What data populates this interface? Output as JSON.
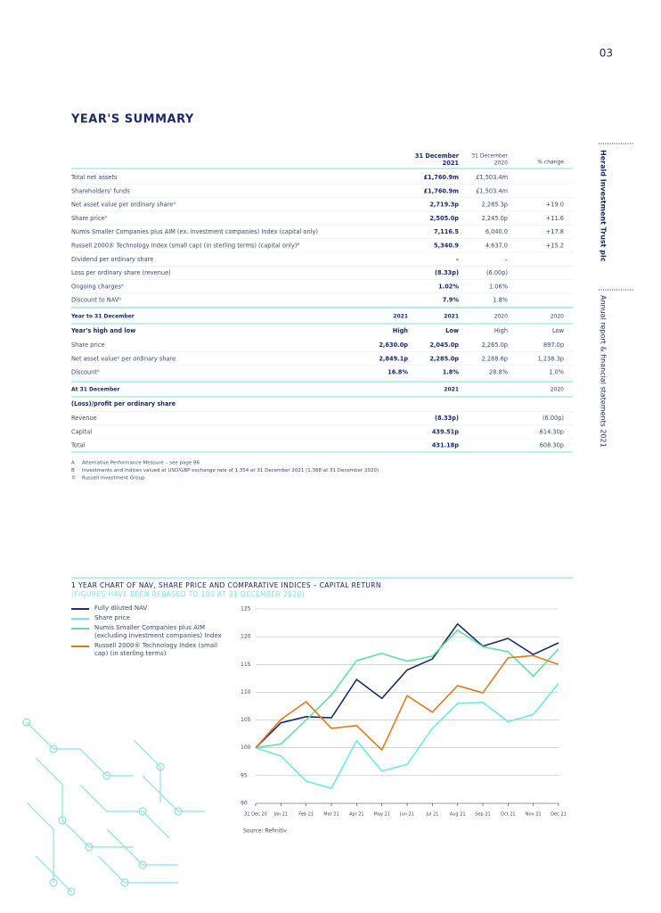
{
  "page_number": "03",
  "title": "YEAR'S SUMMARY",
  "sidebar": [
    "Herald Investment Trust plc",
    "Annual report & financial statements 2021"
  ],
  "summary_table": {
    "header": [
      {
        "line1": "31 December",
        "line2": "2021"
      },
      {
        "line1": "31 December",
        "line2": "2020"
      }
    ],
    "change_header": "% change",
    "rows": [
      [
        "Total net assets",
        "£1,760.9m",
        "£1,503.4m"
      ],
      [
        "Shareholders' funds",
        "£1,760.9m",
        "£1,503.4m"
      ],
      [
        "Net asset value per ordinary shareᴬ",
        "2,719.3p",
        "2,285.3p",
        "+19.0"
      ],
      [
        "Share priceᴬ",
        "2,505.0p",
        "2,245.0p",
        "+11.6"
      ],
      [
        "Numis Smaller Companies plus AIM (ex. investment companies) Index (capital only)",
        "7,116.5",
        "6,040.0",
        "+17.8"
      ],
      [
        "Russell 2000® Technology Index (small cap) (in sterling terms) (capital only)ᴮ",
        "5,340.9",
        "4,637.0",
        "+15.2"
      ],
      [
        "Dividend per ordinary share",
        "–",
        "–"
      ],
      [
        "Loss per ordinary share (revenue)",
        "(8.33p)",
        "(6.00p)"
      ],
      [
        "Ongoing chargesᴬ",
        "1.02%",
        "1.06%"
      ],
      [
        "Discount to NAVᴬ",
        "7.9%",
        "1.8%"
      ]
    ]
  },
  "high_low_table": {
    "header": [
      "Year to 31 December",
      "2021",
      "2021",
      "2020",
      "2020"
    ],
    "subheader": [
      "Year's high and low",
      "High",
      "Low",
      "High",
      "Low"
    ],
    "rows": [
      [
        "Share price",
        "2,630.0p",
        "2,045.0p",
        "2,265.0p",
        "897.0p"
      ],
      [
        "Net asset valueᴬ per ordinary share",
        "2,849.1p",
        "2,285.0p",
        "2,288.6p",
        "1,238.3p"
      ],
      [
        "Discountᴬ",
        "16.8%",
        "1.8%",
        "28.8%",
        "1.0%"
      ]
    ]
  },
  "per_share_table": {
    "header": [
      "At 31 December",
      "2021",
      "2020"
    ],
    "section": "(Loss)/profit per ordinary share",
    "rows": [
      [
        "Revenue",
        "(8.33p)",
        "(6.00p)"
      ],
      [
        "Capital",
        "439.51p",
        "614.30p"
      ],
      [
        "Total",
        "431.18p",
        "608.30p"
      ]
    ]
  },
  "footnotes": [
    {
      "mark": "A",
      "text": "Alternative Performance Measure – see page 86"
    },
    {
      "mark": "B",
      "text": "Investments and indices valued at USD/GBP exchange rate of 1.354 at 31 December 2021 (1.368 at 31 December 2020)"
    },
    {
      "mark": "©",
      "text": "Russell Investment Group"
    }
  ],
  "chart_data": {
    "type": "line",
    "title": "1 YEAR CHART OF NAV, SHARE PRICE AND COMPARATIVE INDICES – CAPITAL RETURN",
    "subtitle": "(FIGURES HAVE BEEN REBASED TO 100 AT 31 DECEMBER 2020)",
    "categories": [
      "31 Dec 20",
      "Jan 21",
      "Feb 21",
      "Mar 21",
      "Apr 21",
      "May 21",
      "Jun 21",
      "Jul 21",
      "Aug 21",
      "Sep 21",
      "Oct 21",
      "Nov 21",
      "Dec 21"
    ],
    "series": [
      {
        "name": "Fully diluted NAV",
        "color": "#1b2a6b",
        "values": [
          100,
          104.5,
          105.6,
          105.4,
          112.3,
          108.9,
          114,
          116,
          122.3,
          118.3,
          119.7,
          116.8,
          118.9
        ]
      },
      {
        "name": "Share price",
        "color": "#6ce8ea",
        "values": [
          100,
          98.5,
          94,
          92.7,
          101.3,
          95.8,
          97,
          103.5,
          108,
          108.2,
          104.7,
          106,
          111.6
        ]
      },
      {
        "name": "Numis Smaller Companies plus AIM (excluding investment companies) Index",
        "color": "#5fe3a1",
        "values": [
          100,
          100.7,
          105,
          109.5,
          115.7,
          117,
          115.6,
          116.5,
          121.2,
          118.2,
          117.3,
          112.9,
          117.8
        ]
      },
      {
        "name": "Russell 2000® Technology Index (small cap) (in sterling terms)",
        "color": "#e07b1a",
        "values": [
          100,
          105.1,
          108.3,
          103.5,
          104,
          99.6,
          109.4,
          106.4,
          111.2,
          109.9,
          116.2,
          116.6,
          115
        ]
      }
    ],
    "ylim": [
      90,
      125
    ],
    "yticks": [
      90,
      95,
      100,
      105,
      110,
      115,
      120,
      125
    ],
    "grid": true,
    "source": "Source: Refinitiv"
  }
}
